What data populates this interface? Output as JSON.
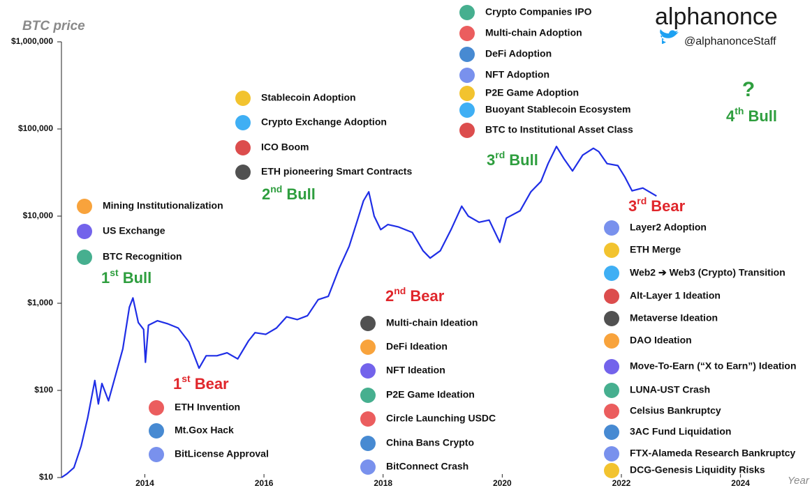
{
  "chart_data": {
    "type": "line",
    "y_label": "BTC price",
    "x_label": "Year",
    "brand": "alphanonce",
    "handle": "@alphanonceStaff",
    "log_y": true,
    "color": "#1f2ee6",
    "xlim": [
      2012.6,
      2025.2
    ],
    "xticks": [
      2014,
      2016,
      2018,
      2020,
      2022,
      2024
    ],
    "ylim": [
      10,
      1000000
    ],
    "yticks": [
      {
        "value": 10,
        "label": "$10"
      },
      {
        "value": 100,
        "label": "$100"
      },
      {
        "value": 1000,
        "label": "$1,000"
      },
      {
        "value": 10000,
        "label": "$10,000"
      },
      {
        "value": 100000,
        "label": "$100,000"
      },
      {
        "value": 1000000,
        "label": "$1,000,000"
      }
    ],
    "x": [
      2012.6,
      2012.69,
      2012.81,
      2012.93,
      2013.04,
      2013.16,
      2013.22,
      2013.28,
      2013.39,
      2013.51,
      2013.63,
      2013.74,
      2013.8,
      2013.89,
      2013.98,
      2014.01,
      2014.06,
      2014.21,
      2014.39,
      2014.56,
      2014.74,
      2014.91,
      2015.03,
      2015.21,
      2015.38,
      2015.56,
      2015.74,
      2015.85,
      2016.03,
      2016.21,
      2016.38,
      2016.56,
      2016.73,
      2016.91,
      2017.08,
      2017.26,
      2017.43,
      2017.57,
      2017.67,
      2017.76,
      2017.85,
      2017.96,
      2018.08,
      2018.26,
      2018.49,
      2018.67,
      2018.79,
      2018.96,
      2019.14,
      2019.32,
      2019.43,
      2019.61,
      2019.78,
      2019.96,
      2020.07,
      2020.3,
      2020.48,
      2020.65,
      2020.77,
      2020.91,
      2021.04,
      2021.18,
      2021.35,
      2021.53,
      2021.62,
      2021.76,
      2021.94,
      2022.06,
      2022.18,
      2022.36,
      2022.59
    ],
    "values": [
      10,
      11,
      13,
      23,
      48,
      130,
      70,
      120,
      76,
      150,
      300,
      900,
      1150,
      600,
      500,
      210,
      560,
      630,
      580,
      520,
      360,
      180,
      250,
      250,
      270,
      230,
      370,
      460,
      440,
      520,
      700,
      650,
      720,
      1100,
      1200,
      2500,
      4500,
      9000,
      15000,
      19000,
      10000,
      7000,
      8000,
      7500,
      6500,
      4000,
      3300,
      4000,
      7000,
      13000,
      10000,
      8500,
      9000,
      5000,
      9500,
      11500,
      19000,
      25000,
      40000,
      63000,
      45000,
      33000,
      50000,
      60000,
      55000,
      40000,
      38000,
      28000,
      19500,
      21000,
      17000
    ],
    "phases": [
      {
        "num": "1",
        "sup": "st",
        "word": "Bull",
        "kind": "bull",
        "items": [
          "Mining Institutionalization",
          "US Exchange",
          "BTC Recognition"
        ]
      },
      {
        "num": "1",
        "sup": "st",
        "word": "Bear",
        "kind": "bear",
        "items": [
          "ETH Invention",
          "Mt.Gox Hack",
          "BitLicense Approval"
        ]
      },
      {
        "num": "2",
        "sup": "nd",
        "word": "Bull",
        "kind": "bull",
        "items": [
          "Stablecoin Adoption",
          "Crypto Exchange Adoption",
          "ICO Boom",
          "ETH pioneering Smart Contracts"
        ]
      },
      {
        "num": "2",
        "sup": "nd",
        "word": "Bear",
        "kind": "bear",
        "items": [
          "Multi-chain Ideation",
          "DeFi Ideation",
          "NFT Ideation",
          "P2E Game Ideation",
          "Circle Launching USDC",
          "China Bans Crypto",
          "BitConnect Crash"
        ]
      },
      {
        "num": "3",
        "sup": "rd",
        "word": "Bull",
        "kind": "bull",
        "items": [
          "Crypto Companies IPO",
          "Multi-chain Adoption",
          "DeFi Adoption",
          "NFT Adoption",
          "P2E Game Adoption",
          "Buoyant Stablecoin Ecosystem",
          "BTC to Institutional Asset Class"
        ]
      },
      {
        "num": "3",
        "sup": "rd",
        "word": "Bear",
        "kind": "bear",
        "items": [
          "Layer2 Adoption",
          "ETH Merge",
          "Web2 ➔ Web3 (Crypto) Transition",
          "Alt-Layer 1 Ideation",
          "Metaverse Ideation",
          "DAO Ideation",
          "Move-To-Earn (“X to Earn”) Ideation",
          "LUNA-UST Crash",
          "Celsius Bankruptcy",
          "3AC Fund Liquidation",
          "FTX-Alameda Research Bankruptcy",
          "DCG-Genesis Liquidity Risks"
        ]
      },
      {
        "num": "4",
        "sup": "th",
        "word": "Bull",
        "kind": "bull",
        "mark": "?",
        "items": []
      }
    ]
  }
}
